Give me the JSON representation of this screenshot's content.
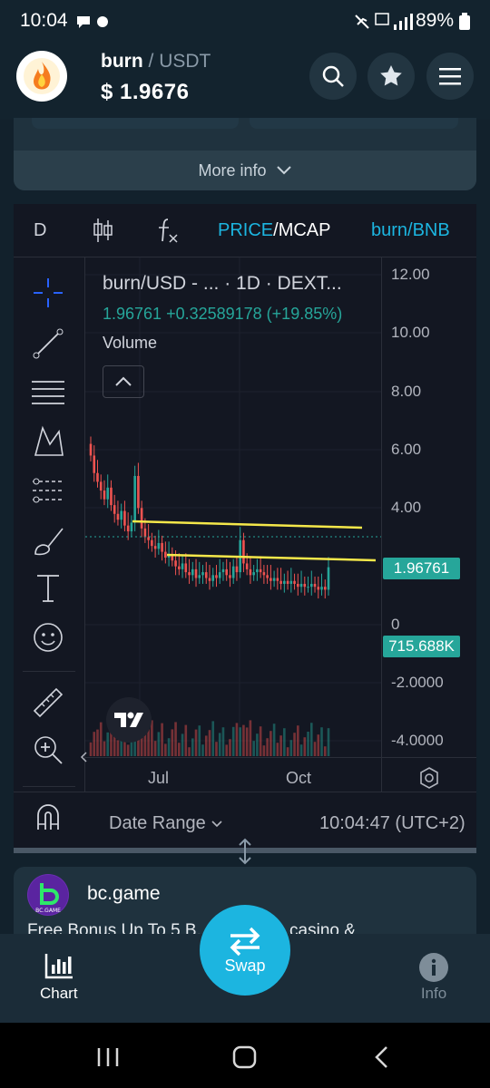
{
  "status_bar": {
    "time": "10:04",
    "battery": "89%"
  },
  "header": {
    "base": "burn",
    "separator": "/",
    "quote": "USDT",
    "price": "$ 1.9676"
  },
  "more_info": {
    "label": "More info"
  },
  "chart_toolbar": {
    "interval": "D",
    "price_label": "PRICE",
    "slash": "/",
    "mcap_label": "MCAP",
    "pair_toggle": "burn/BNB"
  },
  "chart_legend": {
    "title": "burn/USD - ...  · 1D · DEXT...",
    "change": "1.96761  +0.32589178 (+19.85%)",
    "volume_label": "Volume"
  },
  "chart_data": {
    "type": "candlestick",
    "symbol": "burn/USD",
    "interval": "1D",
    "y_ticks": [
      "12.00",
      "10.00",
      "8.00",
      "6.00",
      "4.00",
      "0",
      "-2.0000",
      "-4.0000"
    ],
    "x_ticks": [
      "Jul",
      "Oct"
    ],
    "last_price_tag": "1.96761",
    "volume_tag": "715.688K",
    "close_path": [
      5.8,
      5.2,
      4.9,
      4.6,
      4.3,
      4.7,
      4.1,
      3.8,
      3.6,
      3.9,
      3.4,
      3.2,
      3.5,
      5.1,
      4.0,
      3.3,
      3.0,
      2.9,
      2.7,
      2.6,
      2.8,
      2.5,
      2.3,
      2.4,
      2.2,
      2.0,
      1.9,
      2.1,
      1.8,
      1.7,
      1.9,
      1.6,
      1.7,
      1.8,
      1.6,
      1.5,
      1.7,
      1.6,
      1.8,
      1.9,
      1.7,
      1.6,
      2.0,
      1.8,
      2.9,
      2.1,
      1.9,
      1.7,
      1.8,
      1.9,
      1.8,
      1.7,
      1.6,
      1.5,
      1.6,
      1.5,
      1.4,
      1.5,
      1.4,
      1.5,
      1.4,
      1.3,
      1.4,
      1.3,
      1.3,
      1.4,
      1.3,
      1.2,
      1.3,
      1.2,
      1.97
    ]
  },
  "chart_bottom": {
    "date_range": "Date Range",
    "clock": "10:04:47 (UTC+2)"
  },
  "ad": {
    "brand": "bc.game",
    "logo_text": "BC.GAME",
    "text": "Free Bonus Up To 5 B... day! Live casino &"
  },
  "bottom_nav": {
    "chart": "Chart",
    "swap": "Swap",
    "info": "Info"
  },
  "colors": {
    "accent": "#1cb5e0",
    "up": "#26a69a",
    "down": "#ef5350",
    "trendline": "#f5e84a"
  }
}
